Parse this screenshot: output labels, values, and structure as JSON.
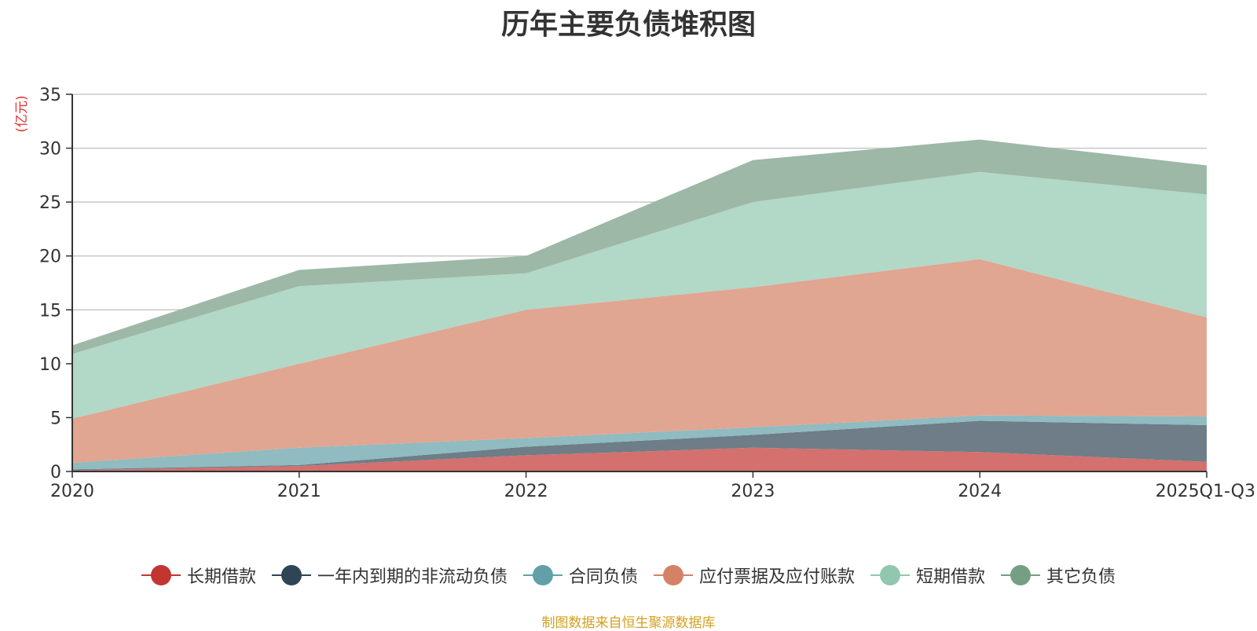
{
  "chart_data": {
    "type": "area",
    "stacked": true,
    "title": "历年主要负债堆积图",
    "ylabel": "(亿元)",
    "xlabel": "",
    "categories": [
      "2020",
      "2021",
      "2022",
      "2023",
      "2024",
      "2025Q1-Q3"
    ],
    "ylim": [
      0,
      35
    ],
    "yticks": [
      0,
      5,
      10,
      15,
      20,
      25,
      30,
      35
    ],
    "grid": true,
    "legend_position": "bottom",
    "series": [
      {
        "name": "长期借款",
        "color": "#c23531",
        "fill": "#d4706d",
        "values": [
          0.1,
          0.5,
          1.5,
          2.2,
          1.8,
          0.9
        ]
      },
      {
        "name": "一年内到期的非流动负债",
        "color": "#2f4554",
        "fill": "#6e7d87",
        "values": [
          0.1,
          0.1,
          0.8,
          1.2,
          2.9,
          3.4
        ]
      },
      {
        "name": "合同负债",
        "color": "#61a0a8",
        "fill": "#8fbbc1",
        "values": [
          0.6,
          1.6,
          0.8,
          0.7,
          0.5,
          0.8
        ]
      },
      {
        "name": "应付票据及应付账款",
        "color": "#d48265",
        "fill": "#e0a691",
        "values": [
          4.1,
          7.8,
          11.9,
          13.0,
          14.5,
          9.2
        ]
      },
      {
        "name": "短期借款",
        "color": "#91c7ae",
        "fill": "#b2d8c7",
        "values": [
          6.0,
          7.2,
          3.4,
          7.9,
          8.1,
          11.4
        ]
      },
      {
        "name": "其它负债",
        "color": "#749f83",
        "fill": "#9db8a6",
        "values": [
          0.8,
          1.5,
          1.6,
          3.9,
          3.0,
          2.7
        ]
      }
    ]
  },
  "source_note": "制图数据来自恒生聚源数据库"
}
